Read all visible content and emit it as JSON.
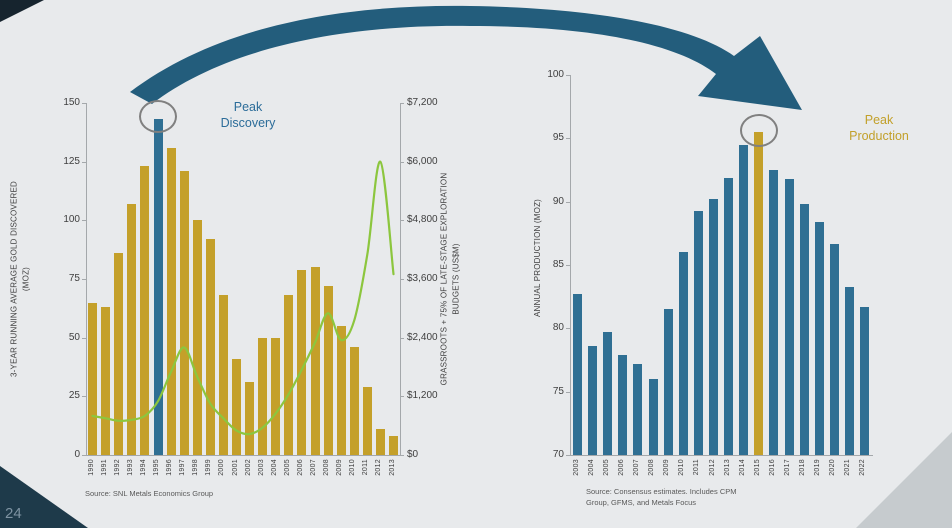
{
  "page": {
    "background": "#e8eaec",
    "page_number": "24"
  },
  "arrow": {
    "color": "#235D7C"
  },
  "decorations": {
    "corner_top_left_color": "#16242E",
    "corner_bottom_left_color": "#1E3A4A",
    "corner_bottom_right_color": "#C6CBCE"
  },
  "chart_data": [
    {
      "type": "bar",
      "categories": [
        "1990",
        "1991",
        "1992",
        "1993",
        "1994",
        "1995",
        "1996",
        "1997",
        "1998",
        "1999",
        "2000",
        "2001",
        "2002",
        "2003",
        "2004",
        "2005",
        "2006",
        "2007",
        "2008",
        "2009",
        "2010",
        "2011",
        "2012",
        "2013"
      ],
      "bars": {
        "name": "3-year running average gold discovered (Moz)",
        "color": "#C4A02A",
        "highlight_index": 5,
        "highlight_category": "1995",
        "highlight_color": "#2F6F93",
        "values": [
          65,
          63,
          86,
          107,
          123,
          143,
          131,
          121,
          100,
          92,
          68,
          41,
          31,
          50,
          50,
          68,
          79,
          80,
          72,
          55,
          46,
          29,
          11,
          8
        ]
      },
      "line": {
        "name": "Grassroots + 75% of late-stage exploration budgets (US$M)",
        "color": "#8CC63E",
        "axis": "right",
        "values": [
          800,
          750,
          700,
          720,
          800,
          1100,
          1700,
          2200,
          1600,
          1050,
          750,
          500,
          430,
          560,
          850,
          1250,
          1750,
          2300,
          2900,
          2350,
          2750,
          4100,
          6000,
          3700
        ]
      },
      "left_axis": {
        "label": "3-YEAR RUNNING AVERAGE GOLD DISCOVERED\n(MOZ)",
        "min": 0,
        "max": 150,
        "tick_values": [
          0,
          25,
          50,
          75,
          100,
          125,
          150
        ],
        "tick_labels": [
          "0",
          "25",
          "50",
          "75",
          "100",
          "125",
          "150"
        ]
      },
      "right_axis": {
        "label": "GRASSROOTS + 75% OF LATE-STAGE EXPLORATION\nBUDGETS (US$M)",
        "min": 0,
        "max": 7200,
        "tick_values": [
          0,
          1200,
          2400,
          3600,
          4800,
          6000,
          7200
        ],
        "tick_labels": [
          "$0",
          "$1,200",
          "$2,400",
          "$3,600",
          "$4,800",
          "$6,000",
          "$7,200"
        ]
      },
      "annotation": {
        "text": "Peak\nDiscovery",
        "color": "#2B6C99"
      },
      "source": "Source: SNL Metals Economics Group"
    },
    {
      "type": "bar",
      "categories": [
        "2003",
        "2004",
        "2005",
        "2006",
        "2007",
        "2008",
        "2009",
        "2010",
        "2011",
        "2012",
        "2013",
        "2014",
        "2015",
        "2016",
        "2017",
        "2018",
        "2019",
        "2020",
        "2021",
        "2022"
      ],
      "bars": {
        "name": "Annual production (Moz)",
        "color": "#2F6F93",
        "highlight_index": 12,
        "highlight_category": "2015",
        "highlight_color": "#C4A02A",
        "values": [
          82.7,
          78.6,
          79.7,
          77.9,
          77.2,
          76,
          81.5,
          86,
          89.3,
          90.2,
          91.9,
          94.5,
          95.5,
          92.5,
          91.8,
          89.8,
          88.4,
          86.7,
          83.3,
          81.7
        ]
      },
      "left_axis": {
        "label": "ANNUAL PRODUCTION (MOZ)",
        "min": 70,
        "max": 100,
        "tick_values": [
          70,
          75,
          80,
          85,
          90,
          95,
          100
        ],
        "tick_labels": [
          "70",
          "75",
          "80",
          "85",
          "90",
          "95",
          "100"
        ]
      },
      "annotation": {
        "text": "Peak\nProduction",
        "color": "#C2A02A"
      },
      "source": "Source: Consensus estimates.  Includes CPM\nGroup, GFMS, and Metals Focus"
    }
  ]
}
